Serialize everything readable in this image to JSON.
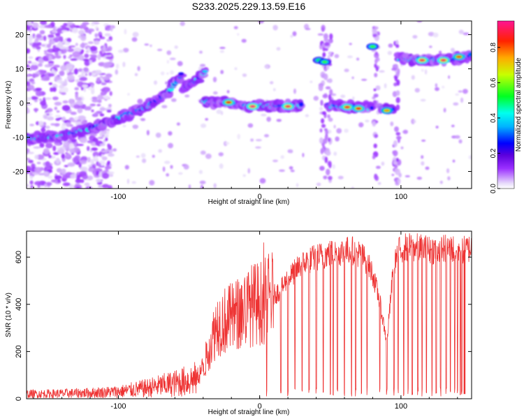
{
  "chart_data": [
    {
      "type": "heatmap",
      "title": "S233.2025.229.13.59.E16",
      "xlabel": "Height of straight line (km)",
      "ylabel": "Frequency (Hz)",
      "xlim": [
        -165,
        150
      ],
      "ylim": [
        -25,
        24
      ],
      "xticks": [
        -100,
        0,
        100
      ],
      "yticks": [
        -20,
        -10,
        0,
        10,
        20
      ],
      "colorbar": {
        "label": "Normalized spectral amplitude",
        "range": [
          0.0,
          0.95
        ],
        "ticks": [
          "0.0",
          "0.2",
          "0.4",
          "0.6",
          "0.8"
        ],
        "tick_values": [
          0.0,
          0.2,
          0.4,
          0.6,
          0.8
        ]
      },
      "ridges": [
        {
          "name": "rising-track",
          "points": [
            [
              -165,
              -10.5
            ],
            [
              -140,
              -9.5
            ],
            [
              -120,
              -7.5
            ],
            [
              -100,
              -4.5
            ],
            [
              -80,
              -1
            ],
            [
              -65,
              3
            ],
            [
              -55,
              8.5
            ]
          ]
        },
        {
          "name": "upper-branch",
          "points": [
            [
              -55,
              4
            ],
            [
              -45,
              6.5
            ],
            [
              -38,
              9.5
            ]
          ]
        },
        {
          "name": "flat-segment-1",
          "points": [
            [
              -40,
              0.5
            ],
            [
              -20,
              0
            ],
            [
              -10,
              -1
            ],
            [
              0,
              -0.8
            ],
            [
              30,
              -0.8
            ]
          ]
        },
        {
          "name": "flat-segment-2",
          "points": [
            [
              48,
              -0.8
            ],
            [
              80,
              -1.5
            ]
          ]
        },
        {
          "name": "flat-segment-3",
          "points": [
            [
              85,
              -1.5
            ],
            [
              95,
              -1.8
            ]
          ]
        },
        {
          "name": "high-segment",
          "points": [
            [
              98,
              13
            ],
            [
              120,
              12.5
            ],
            [
              140,
              13
            ],
            [
              150,
              14
            ]
          ]
        }
      ],
      "hot_spots": [
        {
          "x": -22,
          "y": 0.2,
          "amp": 0.85
        },
        {
          "x": -5,
          "y": -1,
          "amp": 0.95
        },
        {
          "x": 20,
          "y": -1,
          "amp": 0.92
        },
        {
          "x": 62,
          "y": -1.2,
          "amp": 0.88
        },
        {
          "x": 70,
          "y": -1.6,
          "amp": 0.85
        },
        {
          "x": 90,
          "y": -2.2,
          "amp": 0.75
        },
        {
          "x": 115,
          "y": 12.5,
          "amp": 0.92
        },
        {
          "x": 130,
          "y": 12.5,
          "amp": 0.92
        },
        {
          "x": 141,
          "y": 13.5,
          "amp": 0.8
        },
        {
          "x": 80,
          "y": 16.5,
          "amp": 0.55
        },
        {
          "x": 42,
          "y": 12.5,
          "amp": 0.5
        },
        {
          "x": 46,
          "y": 12,
          "amp": 0.55
        }
      ]
    },
    {
      "type": "line",
      "xlabel": "Height of straight line (km)",
      "ylabel": "SNR (10 * v/v)",
      "xlim": [
        -165,
        150
      ],
      "ylim": [
        0,
        710
      ],
      "xticks": [
        -100,
        0,
        100
      ],
      "yticks": [
        0,
        200,
        400,
        600
      ],
      "series": [
        {
          "name": "SNR",
          "color": "#ee3333",
          "x": [
            -165,
            -140,
            -120,
            -100,
            -80,
            -60,
            -45,
            -40,
            -35,
            -30,
            -20,
            -10,
            -5,
            0,
            5,
            10,
            15,
            20,
            30,
            40,
            50,
            60,
            65,
            70,
            75,
            80,
            85,
            90,
            95,
            100,
            110,
            120,
            130,
            140,
            145,
            150
          ],
          "y": [
            20,
            22,
            25,
            30,
            45,
            65,
            85,
            130,
            230,
            320,
            340,
            380,
            400,
            405,
            420,
            440,
            460,
            510,
            570,
            600,
            615,
            625,
            630,
            615,
            590,
            530,
            410,
            240,
            580,
            640,
            640,
            630,
            635,
            635,
            630,
            640
          ]
        }
      ],
      "dropouts_x": [
        5,
        15,
        20,
        25,
        30,
        35,
        40,
        45,
        50,
        52,
        55,
        60,
        65,
        68,
        72,
        76,
        85,
        90,
        95,
        98,
        102,
        105,
        108,
        112,
        115,
        118,
        122,
        125,
        128,
        132,
        135,
        138,
        140,
        142,
        143
      ]
    }
  ],
  "colors": {
    "trace": "#ee3333",
    "axes": "#000000",
    "background": "#ffffff"
  }
}
